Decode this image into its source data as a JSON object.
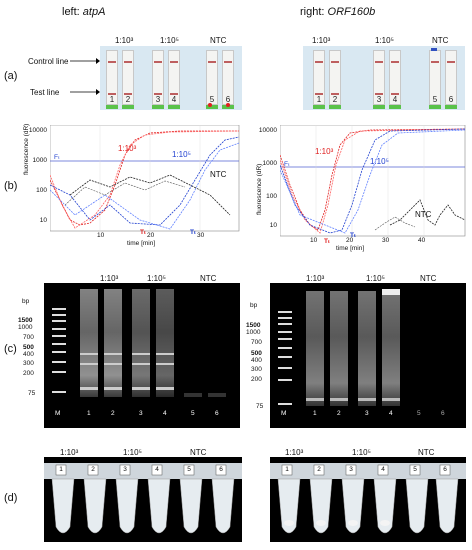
{
  "headers": {
    "left_prefix": "left: ",
    "left_gene": "atpA",
    "right_prefix": "right: ",
    "right_gene": "ORF160b"
  },
  "panel_labels": {
    "a": "(a)",
    "b": "(b)",
    "c": "(c)",
    "d": "(d)"
  },
  "strips": {
    "control_line": "Control line",
    "test_line": "Test line",
    "group_labels": [
      "1:10³",
      "1:10⁵",
      "NTC"
    ],
    "lane_numbers": [
      "1",
      "2",
      "3",
      "4",
      "5",
      "6"
    ]
  },
  "amplification": {
    "ylabel": "fluorescence (dR)",
    "xlabel": "time [min]",
    "threshold_label": "Fₜ",
    "tt_label": "Tₜ",
    "series_labels": [
      "1:10³",
      "1:10⁵",
      "NTC"
    ],
    "left_yticks": [
      "10000",
      "1000",
      "100",
      "10"
    ],
    "left_xticks": [
      "10",
      "20",
      "30"
    ],
    "right_yticks": [
      "10000",
      "1000",
      "100",
      "10"
    ],
    "right_xticks": [
      "10",
      "20",
      "30",
      "40"
    ]
  },
  "gels": {
    "bp_label": "bp",
    "ladder": [
      "1500",
      "1000",
      "700",
      "500",
      "400",
      "300",
      "200",
      "75"
    ],
    "group_labels": [
      "1:10³",
      "1:10⁵",
      "NTC"
    ],
    "lanes": [
      "M",
      "1",
      "2",
      "3",
      "4",
      "5",
      "6"
    ]
  },
  "tubes": {
    "group_labels": [
      "1:10³",
      "1:10⁵",
      "NTC"
    ],
    "numbers": [
      "1",
      "2",
      "3",
      "4",
      "5",
      "6"
    ]
  }
}
